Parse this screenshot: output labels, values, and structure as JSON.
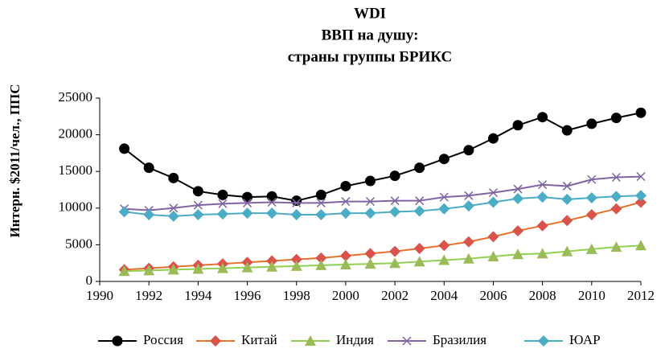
{
  "chart_data": {
    "type": "line",
    "title": [
      "WDI",
      "ВВП на душу:",
      "страны группы БРИКС"
    ],
    "y_label": "Интерн. $2011/чел., ППС",
    "x": [
      1991,
      1992,
      1993,
      1994,
      1995,
      1996,
      1997,
      1998,
      1999,
      2000,
      2001,
      2002,
      2003,
      2004,
      2005,
      2006,
      2007,
      2008,
      2009,
      2010,
      2011,
      2012
    ],
    "xlim": [
      1990,
      2012
    ],
    "xticks": [
      1990,
      1992,
      1994,
      1996,
      1998,
      2000,
      2002,
      2004,
      2006,
      2008,
      2010,
      2012
    ],
    "ylim": [
      0,
      25000
    ],
    "yticks": [
      0,
      5000,
      10000,
      15000,
      20000,
      25000
    ],
    "grid": false,
    "legend": "bottom",
    "series": [
      {
        "name": "Россия",
        "color": "#000000",
        "marker": "circle",
        "values": [
          18100,
          15500,
          14100,
          12300,
          11800,
          11500,
          11600,
          11000,
          11800,
          13000,
          13700,
          14400,
          15500,
          16700,
          17900,
          19500,
          21300,
          22400,
          20600,
          21500,
          22300,
          23000
        ]
      },
      {
        "name": "Китай",
        "color": "#e8702a",
        "marker_color": "#d9534a",
        "marker": "diamond",
        "values": [
          1600,
          1800,
          2000,
          2200,
          2400,
          2600,
          2800,
          3000,
          3200,
          3500,
          3800,
          4100,
          4500,
          4900,
          5400,
          6100,
          6900,
          7600,
          8300,
          9100,
          9900,
          10800
        ]
      },
      {
        "name": "Индия",
        "color": "#92d050",
        "marker_color": "#9bbb59",
        "marker": "triangle",
        "values": [
          1400,
          1500,
          1600,
          1700,
          1800,
          1900,
          2000,
          2100,
          2200,
          2300,
          2400,
          2500,
          2700,
          2900,
          3100,
          3400,
          3700,
          3800,
          4100,
          4400,
          4700,
          4900
        ]
      },
      {
        "name": "Бразилия",
        "color": "#8064a2",
        "marker": "x",
        "values": [
          9900,
          9700,
          10000,
          10400,
          10600,
          10700,
          10800,
          10700,
          10700,
          10900,
          10900,
          11000,
          11000,
          11500,
          11700,
          12100,
          12600,
          13200,
          13000,
          13900,
          14200,
          14300
        ]
      },
      {
        "name": "ЮАР",
        "color": "#4bacc6",
        "marker": "diamond",
        "values": [
          9500,
          9100,
          8900,
          9100,
          9200,
          9300,
          9300,
          9100,
          9100,
          9300,
          9300,
          9500,
          9600,
          9900,
          10300,
          10800,
          11300,
          11500,
          11200,
          11400,
          11600,
          11700
        ]
      }
    ]
  }
}
